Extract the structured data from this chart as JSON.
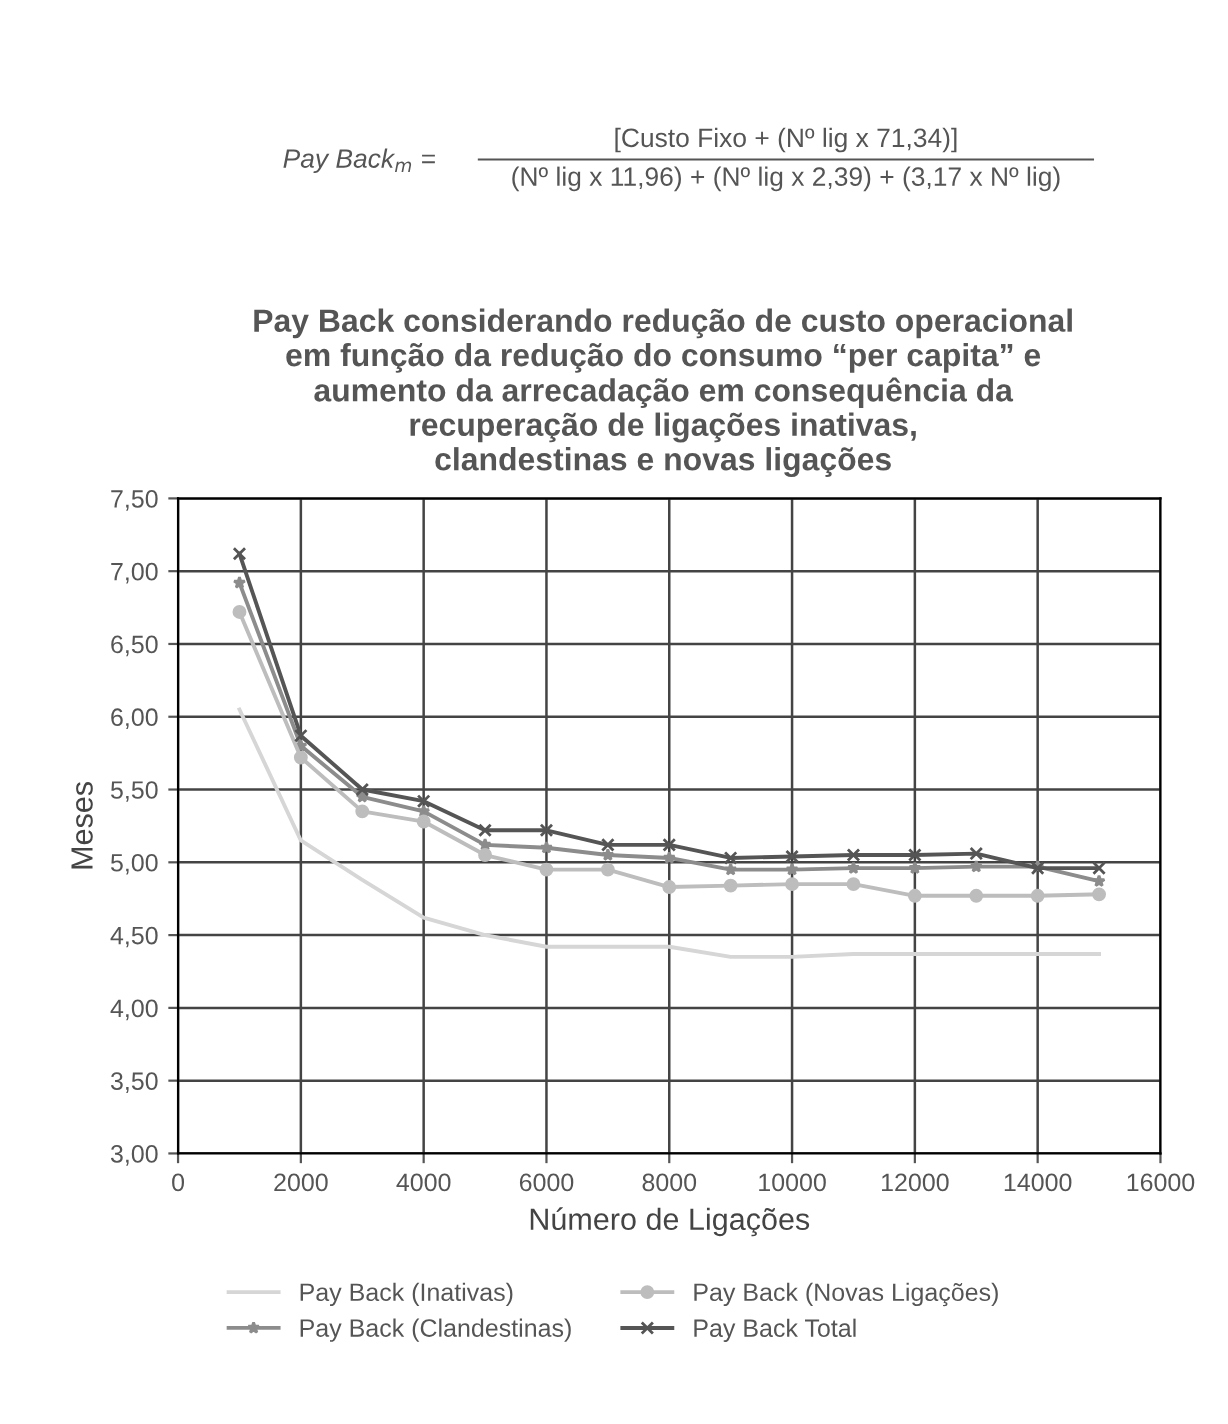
{
  "chart_data": {
    "type": "line",
    "title": "Pay Back considerando redução de custo operacional\nem função da redução do consumo “per capita” e\naumento da arrecadação em consequência da\nrecuperação de ligações inativas,\nclandestinas e novas ligações",
    "annotations": [
      "Pay Back$_{m}$ =",
      "[Custo Fixo + (Nº lig x 71,34)]",
      "(Nº lig x 11,96) + (Nº lig x 2,39) + (3,17 x Nº lig)"
    ],
    "xlabel": "Número de Ligações",
    "ylabel": "Meses",
    "x": [
      1000,
      2000,
      3000,
      4000,
      5000,
      6000,
      7000,
      8000,
      9000,
      10000,
      11000,
      12000,
      13000,
      14000,
      15000
    ],
    "series": [
      {
        "name": "Pay Back (Inativas)",
        "color": "#d6d6d6",
        "marker": "none",
        "values": [
          6.05,
          5.15,
          4.88,
          4.62,
          4.5,
          4.42,
          4.42,
          4.42,
          4.35,
          4.35,
          4.37,
          4.37,
          4.37,
          4.37,
          4.37
        ]
      },
      {
        "name": "Pay Back (Clandestinas)",
        "color": "#8c8c8c",
        "marker": "star",
        "values": [
          6.92,
          5.8,
          5.45,
          5.35,
          5.12,
          5.1,
          5.05,
          5.03,
          4.95,
          4.95,
          4.96,
          4.96,
          4.97,
          4.97,
          4.87
        ]
      },
      {
        "name": "Pay Back (Novas Ligações)",
        "color": "#bdbdbd",
        "marker": "circle",
        "values": [
          6.72,
          5.72,
          5.35,
          5.28,
          5.05,
          4.95,
          4.95,
          4.83,
          4.84,
          4.85,
          4.85,
          4.77,
          4.77,
          4.77,
          4.78
        ]
      },
      {
        "name": "Pay Back Total",
        "color": "#555555",
        "marker": "cross",
        "values": [
          7.12,
          5.87,
          5.5,
          5.42,
          5.22,
          5.22,
          5.12,
          5.12,
          5.03,
          5.04,
          5.05,
          5.05,
          5.06,
          4.96,
          4.96
        ]
      }
    ],
    "xlim": [
      0,
      16000
    ],
    "xticks": [
      0,
      2000,
      4000,
      6000,
      8000,
      10000,
      12000,
      14000,
      16000
    ],
    "ylim": [
      3.0,
      7.5
    ],
    "yticks": [
      {
        "value": 3.0,
        "label": "3,00"
      },
      {
        "value": 3.5,
        "label": "3,50"
      },
      {
        "value": 4.0,
        "label": "4,00"
      },
      {
        "value": 4.5,
        "label": "4,50"
      },
      {
        "value": 5.0,
        "label": "5,00"
      },
      {
        "value": 5.5,
        "label": "5,50"
      },
      {
        "value": 6.0,
        "label": "6,00"
      },
      {
        "value": 6.5,
        "label": "6,50"
      },
      {
        "value": 7.0,
        "label": "7,00"
      },
      {
        "value": 7.5,
        "label": "7,50"
      }
    ],
    "grid": true,
    "legend": "bottom",
    "line_style": "solid"
  }
}
